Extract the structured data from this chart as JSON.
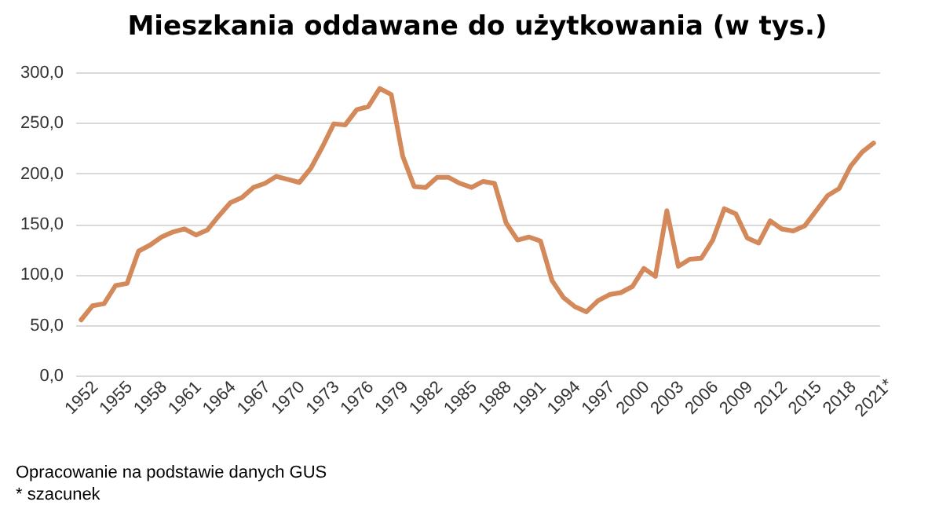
{
  "chart_data": {
    "type": "line",
    "title": "Mieszkania oddawane do użytkowania (w tys.)",
    "categories": [
      "1952",
      null,
      null,
      "1955",
      null,
      null,
      "1958",
      null,
      null,
      "1961",
      null,
      null,
      "1964",
      null,
      null,
      "1967",
      null,
      null,
      "1970",
      null,
      null,
      "1973",
      null,
      null,
      "1976",
      null,
      null,
      "1979",
      null,
      null,
      "1982",
      null,
      null,
      "1985",
      null,
      null,
      "1988",
      null,
      null,
      "1991",
      null,
      null,
      "1994",
      null,
      null,
      "1997",
      null,
      null,
      "2000",
      null,
      null,
      "2003",
      null,
      null,
      "2006",
      null,
      null,
      "2009",
      null,
      null,
      "2012",
      null,
      null,
      "2015",
      null,
      null,
      "2018",
      null,
      null,
      "2021*"
    ],
    "series": [
      {
        "color": "#d4895a",
        "values": [
          55,
          69,
          71,
          89,
          91,
          123,
          129,
          137,
          142,
          145,
          139,
          144,
          158,
          171,
          176,
          186,
          190,
          197,
          194,
          191,
          205,
          226,
          249,
          248,
          263,
          266,
          284,
          278,
          217,
          187,
          186,
          196,
          196,
          190,
          186,
          192,
          190,
          151,
          134,
          137,
          133,
          94,
          77,
          68,
          63,
          74,
          80,
          82,
          88,
          106,
          98,
          163,
          108,
          115,
          116,
          134,
          165,
          160,
          136,
          131,
          153,
          145,
          143,
          148,
          163,
          178,
          185,
          207,
          221,
          230
        ]
      }
    ],
    "ylim": [
      0,
      300
    ],
    "yticks": [
      {
        "value": 0,
        "label": "0,0"
      },
      {
        "value": 50,
        "label": "50,0"
      },
      {
        "value": 100,
        "label": "100,0"
      },
      {
        "value": 150,
        "label": "150,0"
      },
      {
        "value": 200,
        "label": "200,0"
      },
      {
        "value": 250,
        "label": "250,0"
      },
      {
        "value": 300,
        "label": "300,0"
      }
    ],
    "grid": "y",
    "marker": "none",
    "line_style": "solid",
    "annotations": [
      "Opracowanie na podstawie danych GUS",
      "* szacunek"
    ]
  }
}
